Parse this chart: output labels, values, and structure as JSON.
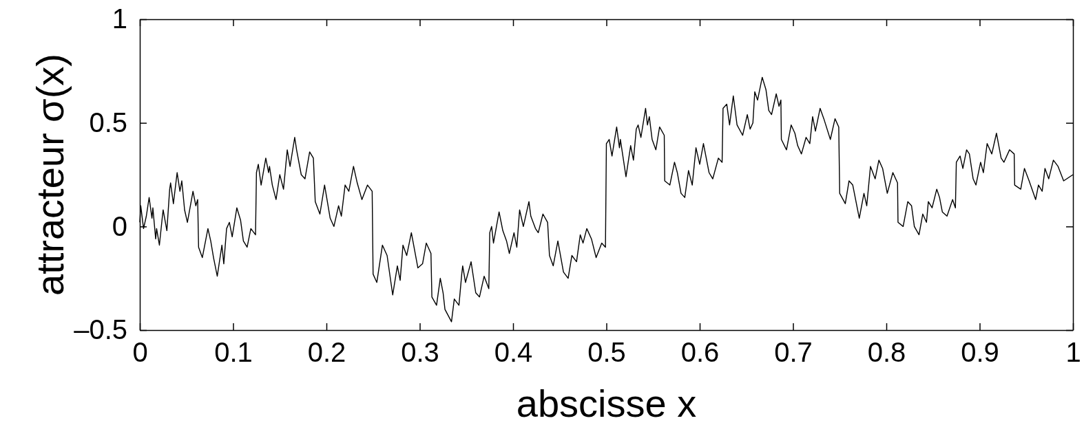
{
  "chart_data": {
    "type": "line",
    "xlabel": "abscisse x",
    "ylabel": "attracteur σ(x)",
    "xlim": [
      0,
      1
    ],
    "ylim": [
      -0.5,
      1
    ],
    "xticks": [
      {
        "value": 0,
        "label": "0"
      },
      0.1,
      0.2,
      0.3,
      0.4,
      0.5,
      0.6,
      0.7,
      0.8,
      0.9,
      {
        "value": 1,
        "label": "1"
      }
    ],
    "yticks": [
      {
        "value": -0.5,
        "label": "–0.5"
      },
      0,
      0.5,
      1
    ],
    "grid": false,
    "marker": "none",
    "line_style": "solid",
    "series": [
      {
        "color": "#000000",
        "x": [
          0,
          0.001,
          0.004,
          0.007,
          0.01,
          0.013,
          0.014,
          0.017,
          0.018,
          0.021,
          0.024,
          0.025,
          0.029,
          0.032,
          0.033,
          0.036,
          0.04,
          0.043,
          0.045,
          0.048,
          0.051,
          0.057,
          0.06,
          0.062,
          0.063,
          0.067,
          0.073,
          0.076,
          0.079,
          0.083,
          0.088,
          0.09,
          0.093,
          0.096,
          0.099,
          0.104,
          0.108,
          0.111,
          0.115,
          0.119,
          0.124,
          0.125,
          0.127,
          0.13,
          0.135,
          0.138,
          0.139,
          0.142,
          0.146,
          0.15,
          0.154,
          0.158,
          0.161,
          0.166,
          0.168,
          0.173,
          0.177,
          0.182,
          0.186,
          0.188,
          0.193,
          0.198,
          0.204,
          0.208,
          0.213,
          0.216,
          0.22,
          0.224,
          0.229,
          0.233,
          0.238,
          0.244,
          0.249,
          0.25,
          0.254,
          0.26,
          0.265,
          0.271,
          0.276,
          0.279,
          0.282,
          0.286,
          0.291,
          0.298,
          0.303,
          0.307,
          0.312,
          0.313,
          0.318,
          0.322,
          0.325,
          0.327,
          0.334,
          0.337,
          0.342,
          0.345,
          0.346,
          0.349,
          0.355,
          0.36,
          0.364,
          0.369,
          0.374,
          0.375,
          0.377,
          0.379,
          0.385,
          0.389,
          0.393,
          0.396,
          0.401,
          0.404,
          0.407,
          0.411,
          0.417,
          0.419,
          0.424,
          0.427,
          0.432,
          0.437,
          0.439,
          0.443,
          0.448,
          0.454,
          0.459,
          0.463,
          0.468,
          0.472,
          0.475,
          0.479,
          0.484,
          0.489,
          0.495,
          0.499,
          0.5,
          0.503,
          0.506,
          0.511,
          0.514,
          0.515,
          0.521,
          0.526,
          0.529,
          0.532,
          0.534,
          0.537,
          0.542,
          0.544,
          0.546,
          0.549,
          0.553,
          0.557,
          0.562,
          0.5625,
          0.568,
          0.573,
          0.576,
          0.58,
          0.584,
          0.588,
          0.592,
          0.596,
          0.6,
          0.604,
          0.61,
          0.614,
          0.62,
          0.624,
          0.625,
          0.629,
          0.632,
          0.636,
          0.64,
          0.646,
          0.651,
          0.654,
          0.657,
          0.659,
          0.662,
          0.667,
          0.671,
          0.674,
          0.677,
          0.682,
          0.685,
          0.687,
          0.6875,
          0.693,
          0.698,
          0.702,
          0.705,
          0.709,
          0.714,
          0.718,
          0.721,
          0.724,
          0.729,
          0.733,
          0.74,
          0.745,
          0.749,
          0.75,
          0.756,
          0.76,
          0.764,
          0.771,
          0.776,
          0.779,
          0.783,
          0.788,
          0.792,
          0.796,
          0.801,
          0.807,
          0.812,
          0.8125,
          0.818,
          0.823,
          0.827,
          0.83,
          0.835,
          0.839,
          0.843,
          0.845,
          0.849,
          0.854,
          0.857,
          0.86,
          0.865,
          0.871,
          0.874,
          0.875,
          0.879,
          0.882,
          0.886,
          0.889,
          0.893,
          0.896,
          0.901,
          0.904,
          0.908,
          0.913,
          0.918,
          0.923,
          0.926,
          0.932,
          0.937,
          0.9375,
          0.944,
          0.948,
          0.953,
          0.96,
          0.963,
          0.967,
          0.97,
          0.974,
          0.979,
          0.984,
          0.99,
          1
        ],
        "values": [
          0.02,
          0.1,
          -0.01,
          0.05,
          0.14,
          0.04,
          0.09,
          -0.06,
          -0.01,
          -0.09,
          0.04,
          0.08,
          -0.02,
          0.18,
          0.21,
          0.11,
          0.26,
          0.17,
          0.22,
          0.08,
          0.02,
          0.17,
          0.1,
          0.13,
          -0.1,
          -0.15,
          -0.01,
          -0.07,
          -0.15,
          -0.24,
          -0.09,
          -0.18,
          -0.01,
          0.02,
          -0.05,
          0.09,
          0.03,
          -0.07,
          -0.1,
          -0.01,
          -0.04,
          0.26,
          0.3,
          0.2,
          0.33,
          0.26,
          0.29,
          0.2,
          0.13,
          0.25,
          0.18,
          0.37,
          0.29,
          0.43,
          0.37,
          0.25,
          0.23,
          0.36,
          0.33,
          0.12,
          0.06,
          0.2,
          0.04,
          0.0,
          0.1,
          0.05,
          0.2,
          0.17,
          0.29,
          0.21,
          0.13,
          0.2,
          0.17,
          -0.23,
          -0.27,
          -0.09,
          -0.14,
          -0.33,
          -0.19,
          -0.26,
          -0.09,
          -0.14,
          -0.03,
          -0.2,
          -0.18,
          -0.08,
          -0.13,
          -0.34,
          -0.38,
          -0.25,
          -0.32,
          -0.4,
          -0.46,
          -0.35,
          -0.38,
          -0.23,
          -0.19,
          -0.27,
          -0.17,
          -0.32,
          -0.34,
          -0.24,
          -0.3,
          -0.03,
          0.0,
          -0.08,
          0.07,
          -0.02,
          -0.07,
          -0.13,
          -0.03,
          -0.1,
          0.08,
          0.0,
          0.12,
          0.05,
          -0.01,
          -0.03,
          0.06,
          0.02,
          -0.14,
          -0.19,
          -0.07,
          -0.22,
          -0.25,
          -0.14,
          -0.17,
          -0.04,
          -0.08,
          -0.01,
          -0.06,
          -0.15,
          -0.08,
          -0.1,
          0.4,
          0.42,
          0.34,
          0.48,
          0.38,
          0.42,
          0.24,
          0.39,
          0.32,
          0.47,
          0.49,
          0.43,
          0.57,
          0.49,
          0.53,
          0.42,
          0.37,
          0.48,
          0.44,
          0.22,
          0.2,
          0.31,
          0.26,
          0.16,
          0.14,
          0.27,
          0.2,
          0.38,
          0.3,
          0.4,
          0.26,
          0.23,
          0.33,
          0.31,
          0.57,
          0.59,
          0.49,
          0.63,
          0.49,
          0.44,
          0.54,
          0.47,
          0.5,
          0.65,
          0.61,
          0.72,
          0.66,
          0.56,
          0.54,
          0.64,
          0.58,
          0.61,
          0.42,
          0.37,
          0.49,
          0.45,
          0.39,
          0.35,
          0.43,
          0.4,
          0.53,
          0.46,
          0.57,
          0.52,
          0.42,
          0.52,
          0.48,
          0.16,
          0.11,
          0.22,
          0.2,
          0.04,
          0.16,
          0.1,
          0.29,
          0.23,
          0.32,
          0.28,
          0.16,
          0.26,
          0.21,
          0.02,
          0.0,
          0.12,
          0.1,
          0.0,
          -0.04,
          0.06,
          0.02,
          0.12,
          0.09,
          0.18,
          0.14,
          0.07,
          0.05,
          0.13,
          0.09,
          0.31,
          0.34,
          0.28,
          0.37,
          0.35,
          0.23,
          0.2,
          0.31,
          0.26,
          0.4,
          0.35,
          0.45,
          0.33,
          0.31,
          0.37,
          0.35,
          0.2,
          0.18,
          0.28,
          0.22,
          0.13,
          0.2,
          0.17,
          0.28,
          0.23,
          0.32,
          0.29,
          0.22,
          0.25
        ]
      }
    ]
  }
}
